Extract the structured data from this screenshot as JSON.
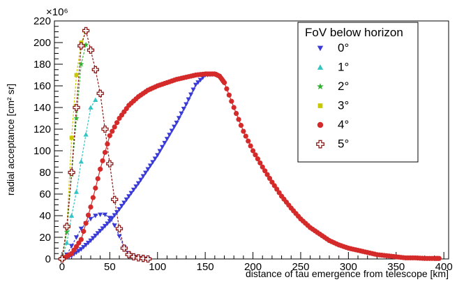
{
  "chart_data": {
    "type": "line",
    "xlabel": "distance of tau emergence from telescope [km]",
    "ylabel": "radial acceptance [cm² sr]",
    "y_multiplier": "×10⁶",
    "xlim": [
      -8,
      405
    ],
    "ylim": [
      0,
      220
    ],
    "x_ticks": [
      0,
      50,
      100,
      150,
      200,
      250,
      300,
      350,
      400
    ],
    "y_ticks": [
      0,
      20,
      40,
      60,
      80,
      100,
      120,
      140,
      160,
      180,
      200,
      220
    ],
    "legend": {
      "title": "FoV below horizon",
      "position": "top-right"
    },
    "series": [
      {
        "name": "0°",
        "color": "#3a3ad6",
        "marker": "triangle-down",
        "line": "dotted",
        "x": [
          0,
          5,
          10,
          15,
          20,
          25,
          30,
          35,
          40,
          45,
          50,
          55,
          60,
          65,
          70,
          75,
          80,
          85,
          90
        ],
        "y": [
          0,
          4,
          12,
          20,
          28,
          33,
          37,
          40,
          41,
          41,
          38,
          31,
          21,
          11,
          5,
          2,
          1,
          0.5,
          0
        ]
      },
      {
        "name": "0°",
        "color": "#3a3ad6",
        "marker": "triangle-down",
        "line": "solid",
        "x": [
          0,
          10,
          20,
          30,
          40,
          50,
          60,
          70,
          80,
          90,
          100,
          110,
          120,
          130,
          140,
          150,
          160
        ],
        "y": [
          0,
          3,
          9,
          17,
          26,
          35,
          46,
          58,
          70,
          83,
          96,
          111,
          126,
          143,
          161,
          170,
          171
        ]
      },
      {
        "name": "1°",
        "color": "#33c4c4",
        "marker": "triangle-up",
        "line": "dotted",
        "x": [
          0,
          5,
          10,
          15,
          20,
          25,
          30,
          35
        ],
        "y": [
          0,
          15,
          40,
          62,
          90,
          115,
          140,
          147
        ]
      },
      {
        "name": "2°",
        "color": "#33b033",
        "marker": "star",
        "line": "dotted",
        "x": [
          0,
          5,
          10,
          15,
          20,
          25
        ],
        "y": [
          0,
          25,
          78,
          130,
          180,
          198
        ]
      },
      {
        "name": "3°",
        "color": "#c8c800",
        "marker": "square",
        "line": "dotted",
        "x": [
          0,
          5,
          10,
          15,
          20,
          25
        ],
        "y": [
          0,
          30,
          112,
          170,
          200,
          210
        ]
      },
      {
        "name": "4°",
        "color": "#d42a2a",
        "marker": "circle",
        "line": "solid",
        "x": [
          0,
          10,
          20,
          30,
          40,
          50,
          60,
          70,
          80,
          90,
          100,
          110,
          120,
          130,
          140,
          150,
          155,
          160,
          165,
          170,
          180,
          190,
          200,
          210,
          220,
          230,
          240,
          250,
          260,
          270,
          280,
          290,
          300,
          310,
          320,
          330,
          340,
          350,
          360,
          370,
          380,
          390,
          395
        ],
        "y": [
          0,
          5,
          18,
          48,
          83,
          114,
          130,
          142,
          150,
          156,
          160,
          163,
          166,
          168,
          170,
          171,
          171,
          171,
          169,
          163,
          140,
          118,
          100,
          85,
          71,
          58,
          47,
          37,
          29,
          23,
          17,
          13,
          10,
          8,
          6,
          4,
          3,
          2,
          1,
          1,
          0.5,
          0.5,
          0.5
        ]
      },
      {
        "name": "5°",
        "color": "#8b1a1a",
        "marker": "cross-open",
        "line": "dotted",
        "x": [
          0,
          5,
          10,
          15,
          20,
          25,
          30,
          35,
          40,
          45,
          50,
          55,
          60,
          65,
          70,
          75,
          80,
          85,
          90
        ],
        "y": [
          0,
          30,
          80,
          140,
          197,
          211,
          193,
          175,
          153,
          120,
          88,
          55,
          28,
          10,
          4,
          2,
          1,
          0.5,
          0
        ]
      }
    ]
  }
}
